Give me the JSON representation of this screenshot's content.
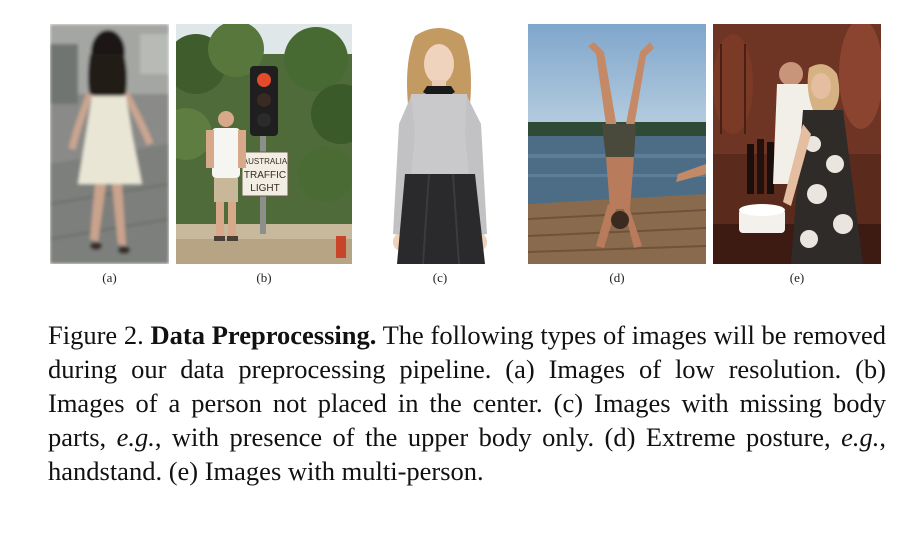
{
  "figure": {
    "panels": [
      {
        "id": "a",
        "label": "(a)"
      },
      {
        "id": "b",
        "label": "(b)"
      },
      {
        "id": "c",
        "label": "(c)"
      },
      {
        "id": "d",
        "label": "(d)"
      },
      {
        "id": "e",
        "label": "(e)"
      }
    ],
    "sign_text_1": "AUSTRALIA",
    "sign_text_2": "TRAFFIC",
    "sign_text_3": "LIGHT",
    "caption": {
      "figure_number": "Figure 2.",
      "title": "Data Preprocessing.",
      "part1": " The following types of images will be removed during our data preprocessing pipeline. (a) Images of low resolution. (b) Images of a person not placed in the center. (c) Images with missing body parts, ",
      "eg1": "e.g.",
      "part2": ", with presence of the upper body only. (d) Extreme posture, ",
      "eg2": "e.g.",
      "part3": ", handstand. (e) Images with multi-person."
    }
  }
}
